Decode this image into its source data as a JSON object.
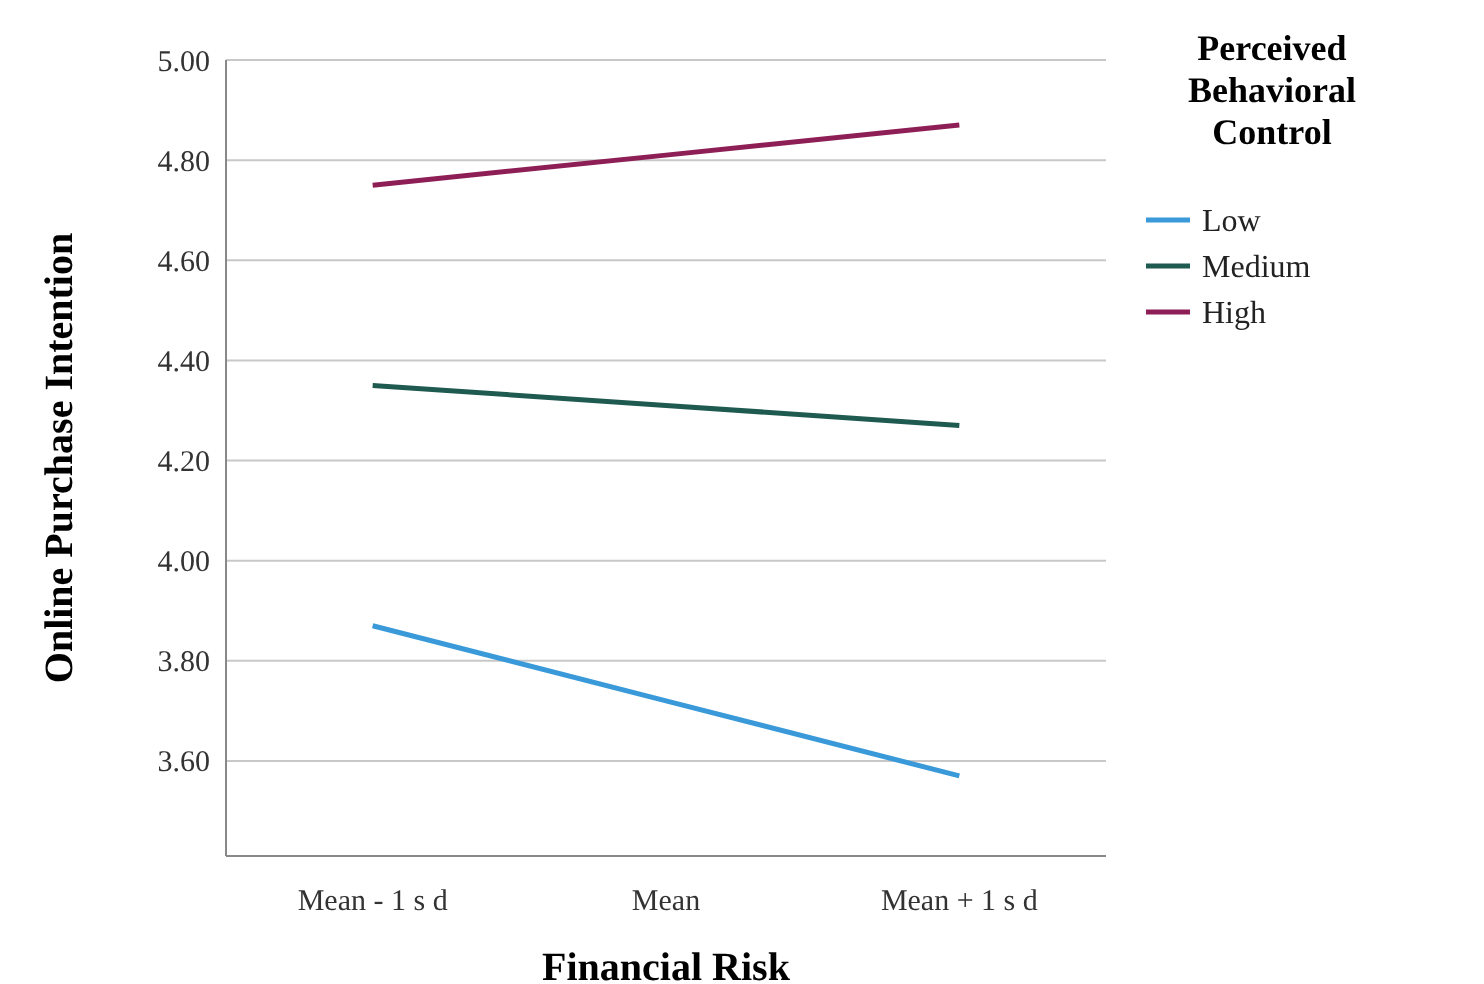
{
  "chart_data": {
    "type": "line",
    "xlabel": "Financial Risk",
    "ylabel": "Online Purchase Intention",
    "legend_title": "Perceived Behavioral Control",
    "categories": [
      "Mean - 1 s d",
      "Mean",
      "Mean + 1 s d"
    ],
    "series": [
      {
        "name": "Low",
        "color": "#3a9ad9",
        "values": [
          3.87,
          3.72,
          3.57
        ]
      },
      {
        "name": "Medium",
        "color": "#1f5a50",
        "values": [
          4.35,
          4.31,
          4.27
        ]
      },
      {
        "name": "High",
        "color": "#8e1f56",
        "values": [
          4.75,
          4.81,
          4.87
        ]
      }
    ],
    "ylim": [
      3.41,
      5.0
    ],
    "yticks": [
      {
        "value": 3.6,
        "label": "3.60"
      },
      {
        "value": 3.8,
        "label": "3.80"
      },
      {
        "value": 4.0,
        "label": "4.00"
      },
      {
        "value": 4.2,
        "label": "4.20"
      },
      {
        "value": 4.4,
        "label": "4.40"
      },
      {
        "value": 4.6,
        "label": "4.60"
      },
      {
        "value": 4.8,
        "label": "4.80"
      },
      {
        "value": 5.0,
        "label": "5.00"
      }
    ],
    "grid": "y",
    "legend": "top right",
    "marker": "none",
    "line_style": "solid"
  }
}
